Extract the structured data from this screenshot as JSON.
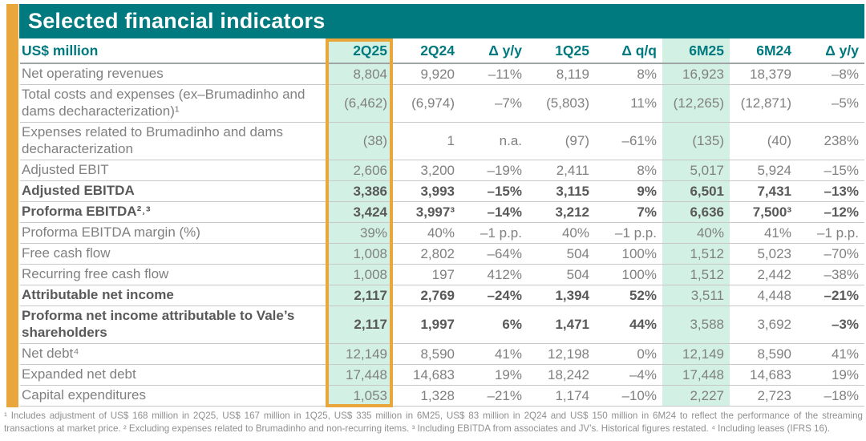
{
  "title": "Selected financial indicators",
  "colors": {
    "teal": "#00797F",
    "accent_orange": "#E9A63B",
    "highlight_mint": "#D3F0E5",
    "text_gray": "#808080",
    "text_bold": "#595959"
  },
  "table": {
    "unit_label": "US$ million",
    "columns": [
      "2Q25",
      "2Q24",
      "Δ y/y",
      "1Q25",
      "Δ q/q",
      "6M25",
      "6M24",
      "Δ y/y"
    ],
    "boxed_column": "2Q25",
    "shaded_columns": [
      "2Q25",
      "6M25"
    ],
    "rows": [
      {
        "label": "Net operating revenues",
        "bold": false,
        "lines": 1,
        "values": [
          "8,804",
          "9,920",
          "–11%",
          "8,119",
          "8%",
          "16,923",
          "18,379",
          "–8%"
        ]
      },
      {
        "label": "Total costs and expenses (ex–Brumadinho and dams decharacterization)¹",
        "bold": false,
        "lines": 2,
        "values": [
          "(6,462)",
          "(6,974)",
          "–7%",
          "(5,803)",
          "11%",
          "(12,265)",
          "(12,871)",
          "–5%"
        ]
      },
      {
        "label": "Expenses related to Brumadinho and dams decharacterization",
        "bold": false,
        "lines": 2,
        "values": [
          "(38)",
          "1",
          "n.a.",
          "(97)",
          "–61%",
          "(135)",
          "(40)",
          "238%"
        ]
      },
      {
        "label": "Adjusted EBIT",
        "bold": false,
        "lines": 1,
        "values": [
          "2,606",
          "3,200",
          "–19%",
          "2,411",
          "8%",
          "5,017",
          "5,924",
          "–15%"
        ]
      },
      {
        "label": "Adjusted EBITDA",
        "bold": true,
        "lines": 1,
        "values": [
          "3,386",
          "3,993",
          "–15%",
          "3,115",
          "9%",
          "6,501",
          "7,431",
          "–13%"
        ]
      },
      {
        "label": "Proforma EBITDA²˒³",
        "bold": true,
        "lines": 1,
        "values": [
          "3,424",
          "3,997³",
          "–14%",
          "3,212",
          "7%",
          "6,636",
          "7,500³",
          "–12%"
        ]
      },
      {
        "label": "Proforma EBITDA margin (%)",
        "bold": false,
        "lines": 1,
        "values": [
          "39%",
          "40%",
          "–1 p.p.",
          "40%",
          "–1 p.p.",
          "40%",
          "41%",
          "–1 p.p."
        ]
      },
      {
        "label": "Free cash flow",
        "bold": false,
        "lines": 1,
        "values": [
          "1,008",
          "2,802",
          "–64%",
          "504",
          "100%",
          "1,512",
          "5,023",
          "–70%"
        ]
      },
      {
        "label": "Recurring free cash flow",
        "bold": false,
        "lines": 1,
        "values": [
          "1,008",
          "197",
          "412%",
          "504",
          "100%",
          "1,512",
          "2,442",
          "–38%"
        ]
      },
      {
        "label": "Attributable net income",
        "bold": true,
        "lines": 1,
        "regular_value_indices": [
          5,
          6
        ],
        "values": [
          "2,117",
          "2,769",
          "–24%",
          "1,394",
          "52%",
          "3,511",
          "4,448",
          "–21%"
        ]
      },
      {
        "label": "Proforma net income attributable to Vale’s shareholders",
        "bold": true,
        "lines": 2,
        "regular_value_indices": [
          5,
          6
        ],
        "values": [
          "2,117",
          "1,997",
          "6%",
          "1,471",
          "44%",
          "3,588",
          "3,692",
          "–3%"
        ]
      },
      {
        "label": "Net debt⁴",
        "bold": false,
        "lines": 1,
        "values": [
          "12,149",
          "8,590",
          "41%",
          "12,198",
          "0%",
          "12,149",
          "8,590",
          "41%"
        ]
      },
      {
        "label": "Expanded net debt",
        "bold": false,
        "lines": 1,
        "values": [
          "17,448",
          "14,683",
          "19%",
          "18,242",
          "–4%",
          "17,448",
          "14,683",
          "19%"
        ]
      },
      {
        "label": "Capital expenditures",
        "bold": false,
        "lines": 1,
        "values": [
          "1,053",
          "1,328",
          "–21%",
          "1,174",
          "–10%",
          "2,227",
          "2,723",
          "–18%"
        ]
      }
    ]
  },
  "footnotes": "¹ Includes adjustment of US$ 168 million in 2Q25, US$ 167 million in 1Q25, US$ 335 million in 6M25, US$ 83 million in 2Q24 and US$ 150 million in 6M24 to reflect the performance of the streaming transactions at market price. ² Excluding expenses related to Brumadinho and non-recurring items. ³ Including EBITDA from associates and JV’s. Historical figures restated. ⁴ Including leases (IFRS 16)."
}
